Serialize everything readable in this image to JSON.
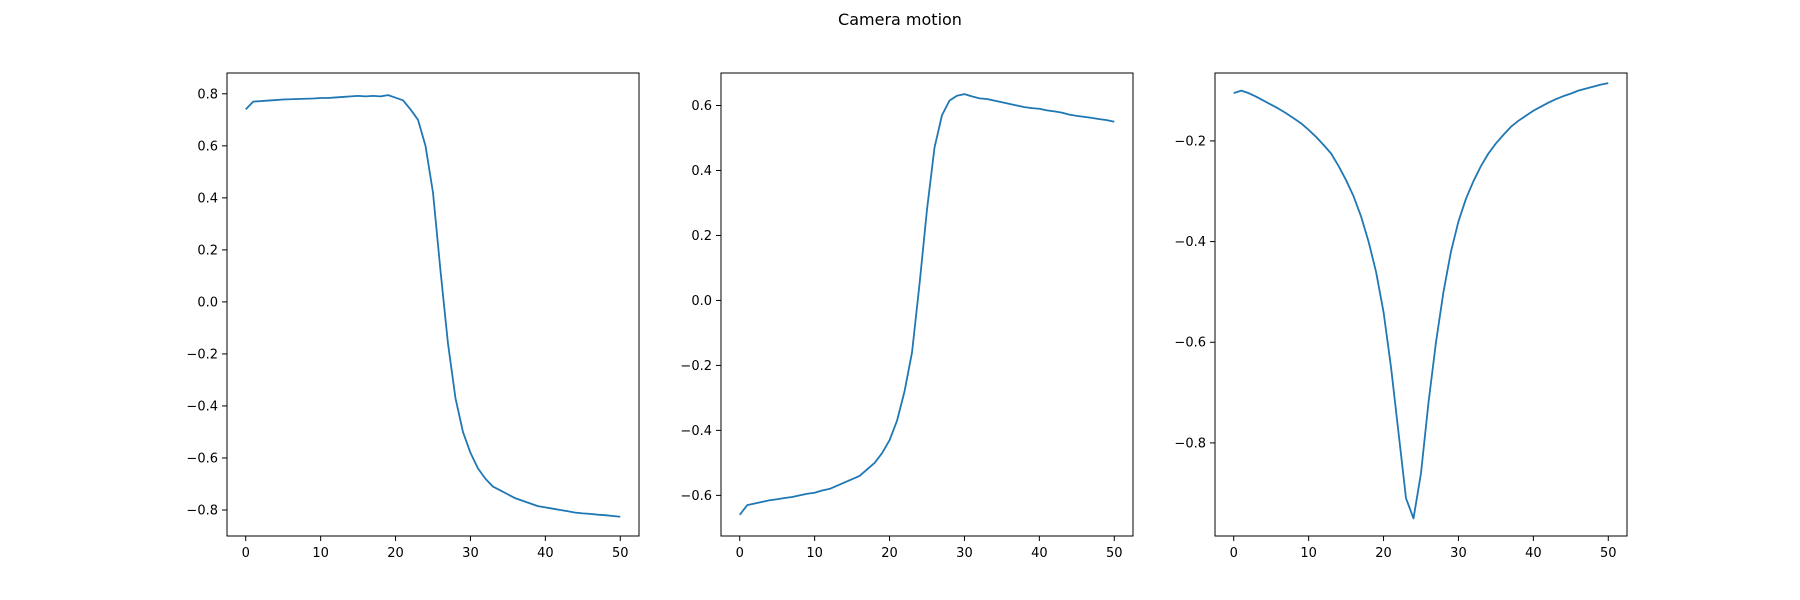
{
  "figure": {
    "title": "Camera motion"
  },
  "colors": {
    "series": "#1f77b4"
  },
  "chart_data": [
    {
      "type": "line",
      "title": "",
      "xlabel": "",
      "ylabel": "",
      "xlim": [
        -2.5,
        52.5
      ],
      "ylim": [
        -0.9,
        0.88
      ],
      "grid": false,
      "xticks": [
        0,
        10,
        20,
        30,
        40,
        50
      ],
      "yticks": [
        -0.8,
        -0.6,
        -0.4,
        -0.2,
        0.0,
        0.2,
        0.4,
        0.6,
        0.8
      ],
      "ytick_labels": [
        "−0.8",
        "−0.6",
        "−0.4",
        "−0.2",
        "0.0",
        "0.2",
        "0.4",
        "0.6",
        "0.8"
      ],
      "series": [
        {
          "x": [
            0,
            1,
            2,
            3,
            4,
            5,
            6,
            7,
            8,
            9,
            10,
            11,
            12,
            13,
            14,
            15,
            16,
            17,
            18,
            19,
            20,
            21,
            22,
            23,
            24,
            25,
            26,
            27,
            28,
            29,
            30,
            31,
            32,
            33,
            34,
            35,
            36,
            37,
            38,
            39,
            40,
            41,
            42,
            43,
            44,
            45,
            46,
            47,
            48,
            49,
            50
          ],
          "values": [
            0.74,
            0.77,
            0.772,
            0.774,
            0.776,
            0.778,
            0.779,
            0.78,
            0.781,
            0.782,
            0.784,
            0.784,
            0.786,
            0.788,
            0.79,
            0.792,
            0.79,
            0.792,
            0.79,
            0.795,
            0.785,
            0.775,
            0.74,
            0.7,
            0.6,
            0.42,
            0.12,
            -0.16,
            -0.37,
            -0.5,
            -0.58,
            -0.64,
            -0.68,
            -0.71,
            -0.725,
            -0.74,
            -0.755,
            -0.765,
            -0.775,
            -0.785,
            -0.79,
            -0.795,
            -0.8,
            -0.805,
            -0.81,
            -0.813,
            -0.815,
            -0.818,
            -0.82,
            -0.823,
            -0.826
          ]
        }
      ]
    },
    {
      "type": "line",
      "title": "",
      "xlabel": "",
      "ylabel": "",
      "xlim": [
        -2.5,
        52.5
      ],
      "ylim": [
        -0.725,
        0.7
      ],
      "grid": false,
      "xticks": [
        0,
        10,
        20,
        30,
        40,
        50
      ],
      "yticks": [
        -0.6,
        -0.4,
        -0.2,
        0.0,
        0.2,
        0.4,
        0.6
      ],
      "ytick_labels": [
        "−0.6",
        "−0.4",
        "−0.2",
        "0.0",
        "0.2",
        "0.4",
        "0.6"
      ],
      "series": [
        {
          "x": [
            0,
            1,
            2,
            3,
            4,
            5,
            6,
            7,
            8,
            9,
            10,
            11,
            12,
            13,
            14,
            15,
            16,
            17,
            18,
            19,
            20,
            21,
            22,
            23,
            24,
            25,
            26,
            27,
            28,
            29,
            30,
            31,
            32,
            33,
            34,
            35,
            36,
            37,
            38,
            39,
            40,
            41,
            42,
            43,
            44,
            45,
            46,
            47,
            48,
            49,
            50
          ],
          "values": [
            -0.66,
            -0.63,
            -0.625,
            -0.62,
            -0.615,
            -0.612,
            -0.608,
            -0.605,
            -0.6,
            -0.595,
            -0.592,
            -0.585,
            -0.58,
            -0.57,
            -0.56,
            -0.55,
            -0.54,
            -0.52,
            -0.5,
            -0.47,
            -0.43,
            -0.37,
            -0.28,
            -0.16,
            0.05,
            0.28,
            0.47,
            0.57,
            0.615,
            0.63,
            0.635,
            0.628,
            0.622,
            0.62,
            0.615,
            0.61,
            0.605,
            0.6,
            0.595,
            0.592,
            0.59,
            0.585,
            0.582,
            0.578,
            0.572,
            0.568,
            0.565,
            0.562,
            0.558,
            0.555,
            0.55
          ]
        }
      ]
    },
    {
      "type": "line",
      "title": "",
      "xlabel": "",
      "ylabel": "",
      "xlim": [
        -2.5,
        52.5
      ],
      "ylim": [
        -0.985,
        -0.065
      ],
      "grid": false,
      "xticks": [
        0,
        10,
        20,
        30,
        40,
        50
      ],
      "yticks": [
        -0.8,
        -0.6,
        -0.4,
        -0.2
      ],
      "ytick_labels": [
        "−0.8",
        "−0.6",
        "−0.4",
        "−0.2"
      ],
      "series": [
        {
          "x": [
            0,
            1,
            2,
            3,
            4,
            5,
            6,
            7,
            8,
            9,
            10,
            11,
            12,
            13,
            14,
            15,
            16,
            17,
            18,
            19,
            20,
            21,
            22,
            23,
            24,
            25,
            26,
            27,
            28,
            29,
            30,
            31,
            32,
            33,
            34,
            35,
            36,
            37,
            38,
            39,
            40,
            41,
            42,
            43,
            44,
            45,
            46,
            47,
            48,
            49,
            50
          ],
          "values": [
            -0.105,
            -0.1,
            -0.105,
            -0.112,
            -0.12,
            -0.128,
            -0.136,
            -0.145,
            -0.155,
            -0.165,
            -0.178,
            -0.192,
            -0.208,
            -0.225,
            -0.25,
            -0.278,
            -0.31,
            -0.35,
            -0.4,
            -0.46,
            -0.54,
            -0.65,
            -0.78,
            -0.91,
            -0.95,
            -0.86,
            -0.72,
            -0.6,
            -0.5,
            -0.42,
            -0.36,
            -0.315,
            -0.28,
            -0.25,
            -0.225,
            -0.205,
            -0.188,
            -0.172,
            -0.16,
            -0.15,
            -0.14,
            -0.132,
            -0.124,
            -0.117,
            -0.111,
            -0.106,
            -0.1,
            -0.096,
            -0.092,
            -0.088,
            -0.085
          ]
        }
      ]
    }
  ]
}
